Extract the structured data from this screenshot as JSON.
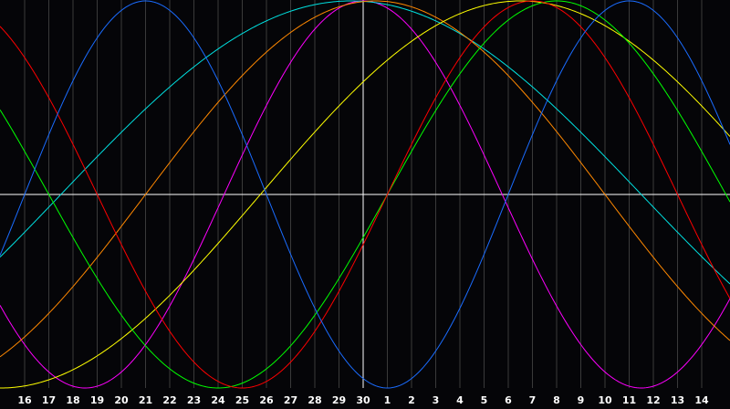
{
  "chart_data": {
    "type": "line",
    "title": "",
    "xlabel": "",
    "ylabel": "",
    "grid": true,
    "ylim": [
      -1,
      1
    ],
    "categories": [
      "16",
      "17",
      "18",
      "19",
      "20",
      "21",
      "22",
      "23",
      "24",
      "25",
      "26",
      "27",
      "28",
      "29",
      "30",
      "1",
      "2",
      "3",
      "4",
      "5",
      "6",
      "7",
      "8",
      "9",
      "10",
      "11",
      "12",
      "13",
      "14"
    ],
    "series": [
      {
        "color": "#ff00ff",
        "period": 23,
        "peak_day_offset": 0
      },
      {
        "color": "#00e0e0",
        "period": 48,
        "peak_day_offset": -0.5
      },
      {
        "color": "#ff8800",
        "period": 38,
        "peak_day_offset": 0.5
      },
      {
        "color": "#ffff00",
        "period": 43,
        "peak_day_offset": 6.5
      },
      {
        "color": "#00ff00",
        "period": 28,
        "peak_day_offset": 8
      },
      {
        "color": "#ff0000",
        "period": 24,
        "peak_day_offset": 7
      },
      {
        "color": "#1a6cff",
        "period": 20,
        "peak_day_offset": 11
      }
    ]
  }
}
